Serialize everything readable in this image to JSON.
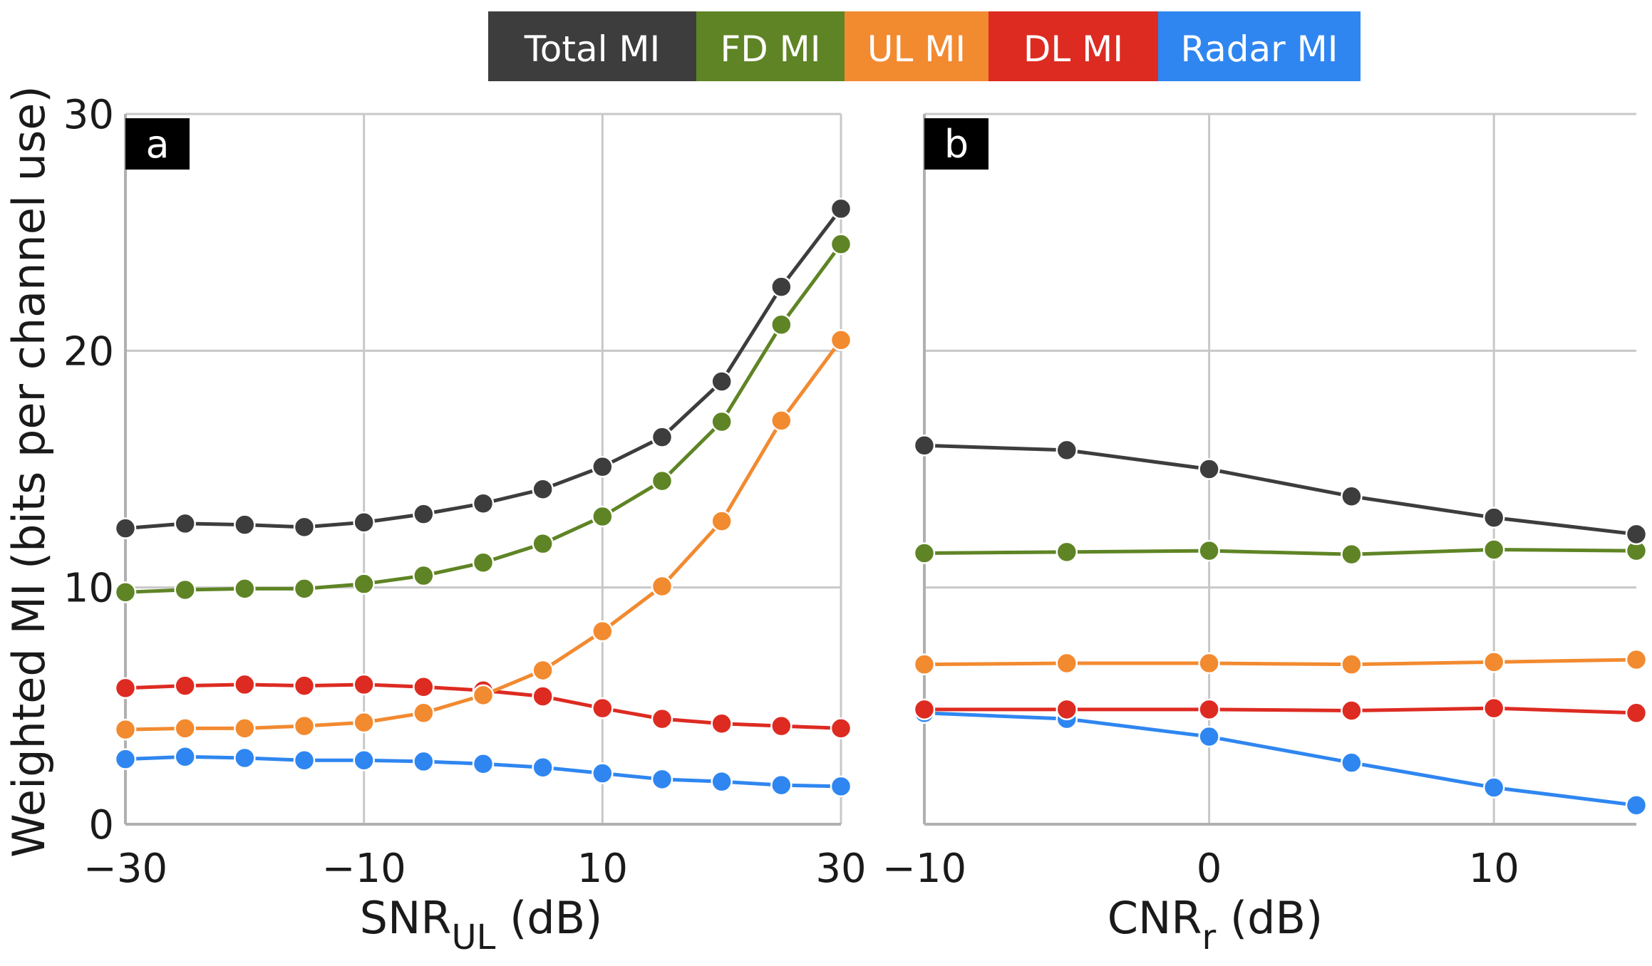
{
  "chart_data": [
    {
      "panel": "a",
      "type": "line",
      "xlabel_main": "SNR",
      "xlabel_sub": "UL",
      "xlabel_tail": " (dB)",
      "ylabel": "Weighted MI (bits per channel use)",
      "xlim": [
        -30,
        30
      ],
      "ylim": [
        0,
        30
      ],
      "xticks": [
        -30,
        -10,
        10,
        30
      ],
      "xtick_labels": [
        "−30",
        "−10",
        "10",
        "30"
      ],
      "yticks": [
        0,
        10,
        20,
        30
      ],
      "ytick_labels": [
        "0",
        "10",
        "20",
        "30"
      ],
      "grid": true,
      "x": [
        -30,
        -25,
        -20,
        -15,
        -10,
        -5,
        0,
        5,
        10,
        15,
        20,
        25,
        30
      ],
      "series": [
        {
          "name": "Total MI",
          "color": "#3d3d3d",
          "values": [
            12.5,
            12.7,
            12.65,
            12.55,
            12.75,
            13.1,
            13.55,
            14.15,
            15.1,
            16.35,
            18.7,
            22.7,
            26.0
          ]
        },
        {
          "name": "FD MI",
          "color": "#5f8425",
          "values": [
            9.8,
            9.9,
            9.95,
            9.95,
            10.15,
            10.5,
            11.05,
            11.85,
            13.0,
            14.5,
            17.0,
            21.1,
            24.5
          ]
        },
        {
          "name": "UL MI",
          "color": "#f28a30",
          "values": [
            4.0,
            4.05,
            4.05,
            4.15,
            4.3,
            4.7,
            5.45,
            6.5,
            8.15,
            10.05,
            12.8,
            17.05,
            20.45
          ]
        },
        {
          "name": "DL MI",
          "color": "#dd2b22",
          "values": [
            5.75,
            5.85,
            5.9,
            5.85,
            5.9,
            5.8,
            5.65,
            5.4,
            4.9,
            4.45,
            4.25,
            4.15,
            4.05
          ]
        },
        {
          "name": "Radar MI",
          "color": "#2f86f0",
          "values": [
            2.75,
            2.85,
            2.8,
            2.7,
            2.7,
            2.65,
            2.55,
            2.4,
            2.15,
            1.9,
            1.8,
            1.65,
            1.6
          ]
        }
      ]
    },
    {
      "panel": "b",
      "type": "line",
      "xlabel_main": "CNR",
      "xlabel_sub": "r",
      "xlabel_tail": " (dB)",
      "ylabel": "",
      "xlim": [
        -10,
        15
      ],
      "ylim": [
        0,
        30
      ],
      "xticks": [
        -10,
        0,
        10
      ],
      "xtick_labels": [
        "−10",
        "0",
        "10"
      ],
      "yticks": [
        0,
        10,
        20,
        30
      ],
      "grid": true,
      "x": [
        -10,
        -5,
        0,
        5,
        10,
        15
      ],
      "series": [
        {
          "name": "Total MI",
          "color": "#3d3d3d",
          "values": [
            16.0,
            15.8,
            15.0,
            13.85,
            12.95,
            12.25
          ]
        },
        {
          "name": "FD MI",
          "color": "#5f8425",
          "values": [
            11.45,
            11.5,
            11.55,
            11.4,
            11.6,
            11.55
          ]
        },
        {
          "name": "UL MI",
          "color": "#f28a30",
          "values": [
            6.75,
            6.8,
            6.8,
            6.75,
            6.85,
            6.95
          ]
        },
        {
          "name": "DL MI",
          "color": "#dd2b22",
          "values": [
            4.85,
            4.85,
            4.85,
            4.8,
            4.9,
            4.7
          ]
        },
        {
          "name": "Radar MI",
          "color": "#2f86f0",
          "values": [
            4.7,
            4.45,
            3.7,
            2.6,
            1.55,
            0.8
          ]
        }
      ]
    }
  ],
  "legend": {
    "placement": "top-center",
    "items": [
      {
        "label": "Total MI",
        "color": "#3d3d3d"
      },
      {
        "label": "FD MI",
        "color": "#5f8425"
      },
      {
        "label": "UL MI",
        "color": "#f28a30"
      },
      {
        "label": "DL MI",
        "color": "#dd2b22"
      },
      {
        "label": "Radar MI",
        "color": "#2f86f0"
      }
    ]
  },
  "panel_tags": [
    "a",
    "b"
  ]
}
